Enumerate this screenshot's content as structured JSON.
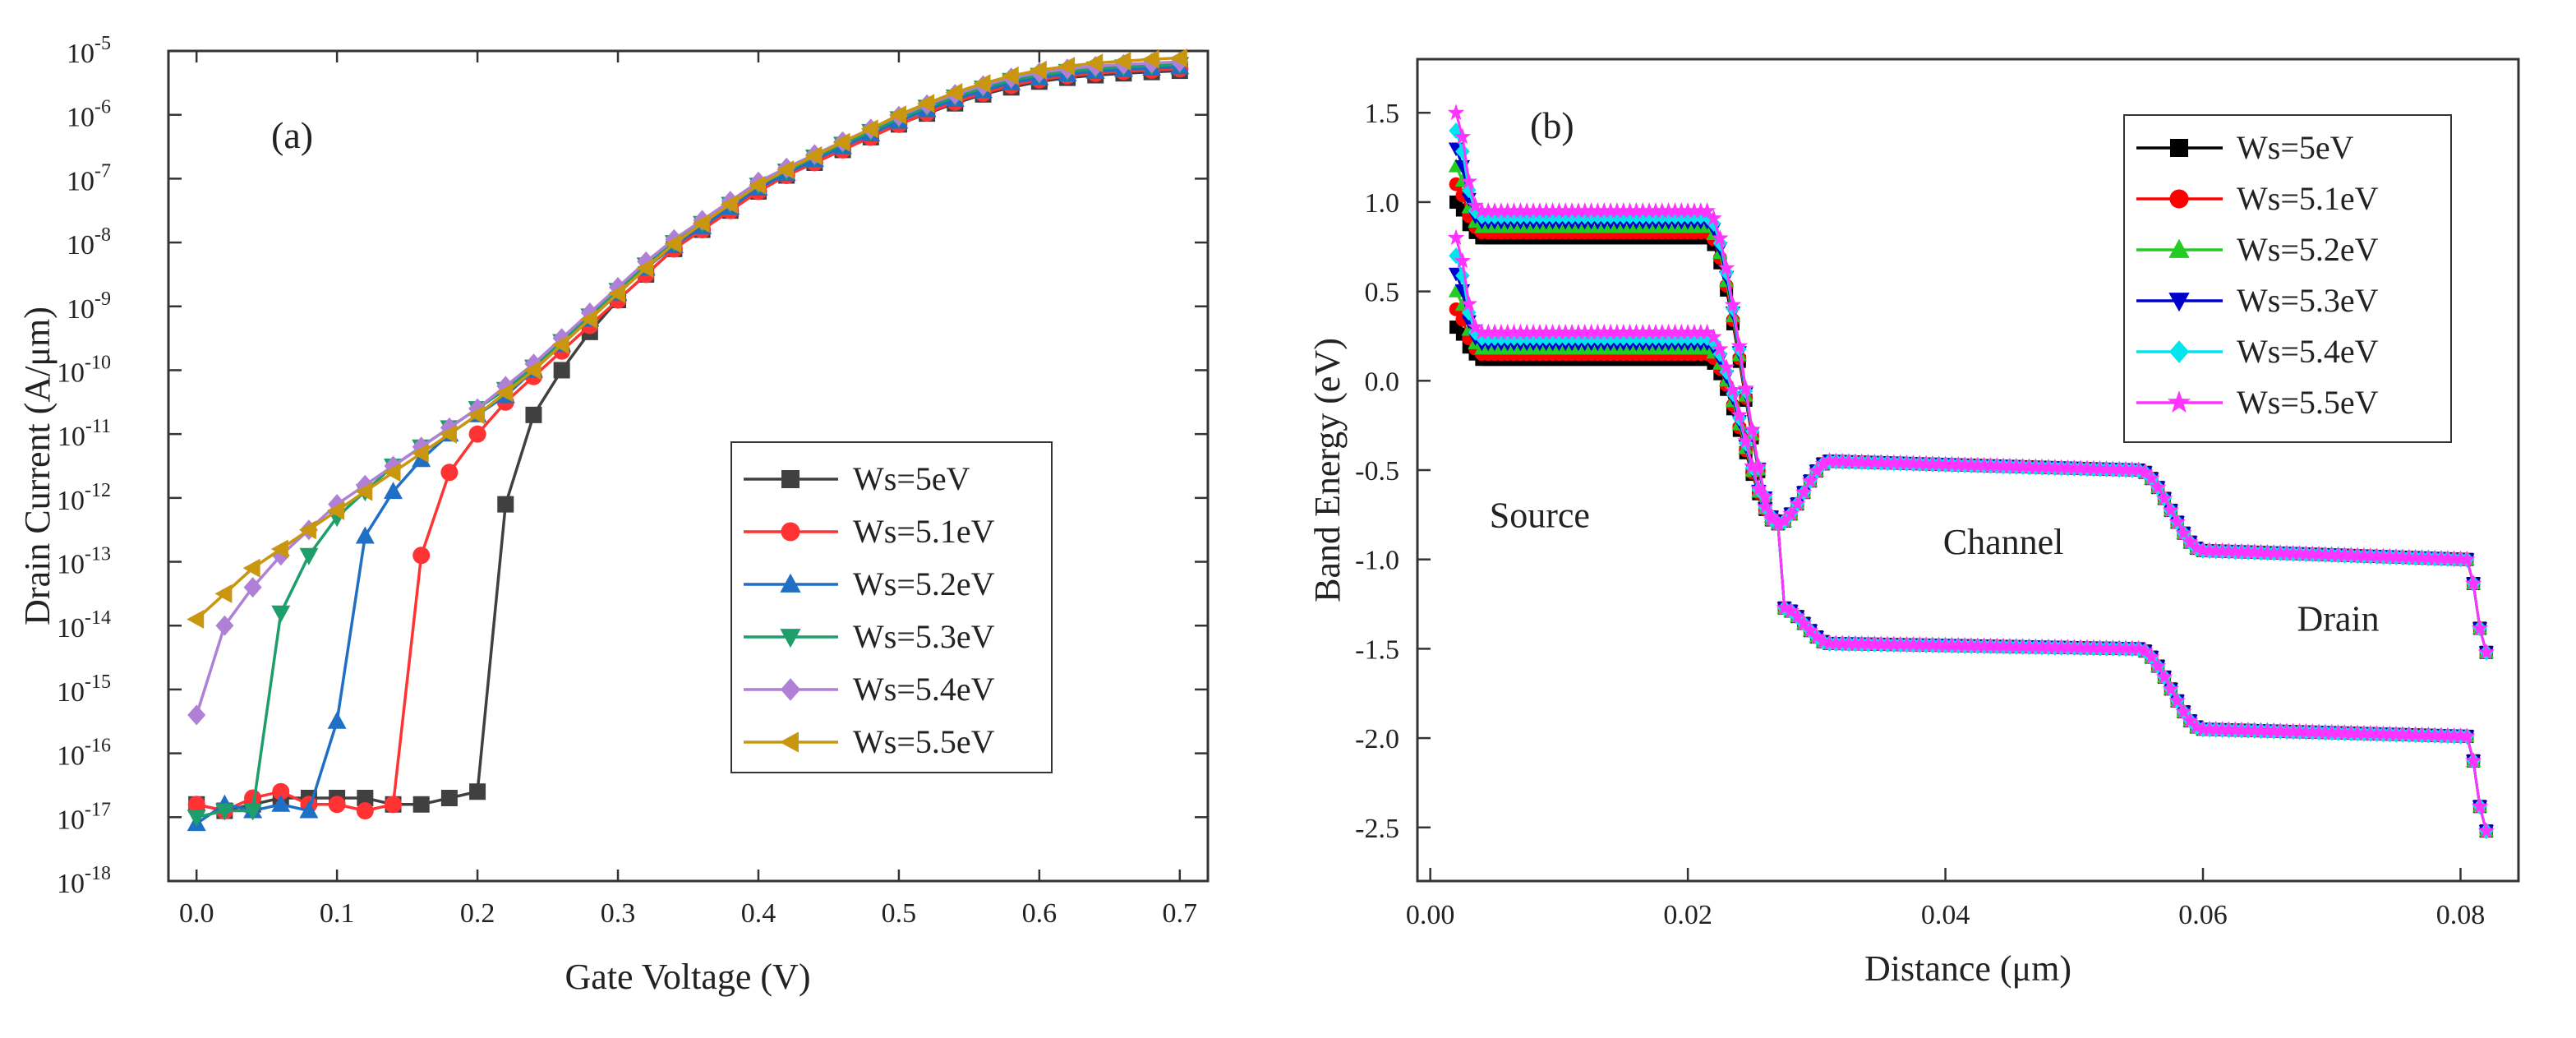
{
  "chart_data": [
    {
      "type": "line",
      "panel_label": "(a)",
      "xlabel": "Gate Voltage (V)",
      "ylabel": "Drain Current (A/μm)",
      "yscale": "log",
      "xlim": [
        -0.02,
        0.72
      ],
      "ylim_exp": [
        -18,
        -5
      ],
      "xticks": [
        "0.0",
        "0.1",
        "0.2",
        "0.3",
        "0.4",
        "0.5",
        "0.6",
        "0.7"
      ],
      "yticks": [
        {
          "base": "10",
          "exp": "-18"
        },
        {
          "base": "10",
          "exp": "-17"
        },
        {
          "base": "10",
          "exp": "-16"
        },
        {
          "base": "10",
          "exp": "-15"
        },
        {
          "base": "10",
          "exp": "-14"
        },
        {
          "base": "10",
          "exp": "-13"
        },
        {
          "base": "10",
          "exp": "-12"
        },
        {
          "base": "10",
          "exp": "-11"
        },
        {
          "base": "10",
          "exp": "-10"
        },
        {
          "base": "10",
          "exp": "-9"
        },
        {
          "base": "10",
          "exp": "-8"
        },
        {
          "base": "10",
          "exp": "-7"
        },
        {
          "base": "10",
          "exp": "-6"
        },
        {
          "base": "10",
          "exp": "-5"
        }
      ],
      "legend_position": "center-right",
      "x": [
        0.0,
        0.02,
        0.04,
        0.06,
        0.08,
        0.1,
        0.12,
        0.14,
        0.16,
        0.18,
        0.2,
        0.22,
        0.24,
        0.26,
        0.28,
        0.3,
        0.32,
        0.34,
        0.36,
        0.38,
        0.4,
        0.42,
        0.44,
        0.46,
        0.48,
        0.5,
        0.52,
        0.54,
        0.56,
        0.58,
        0.6,
        0.62,
        0.64,
        0.66,
        0.68,
        0.7
      ],
      "series": [
        {
          "name": "Ws=5eV",
          "color": "#404040",
          "marker": "square",
          "log10_values": [
            -16.8,
            -16.9,
            -16.8,
            -16.7,
            -16.7,
            -16.7,
            -16.7,
            -16.8,
            -16.8,
            -16.7,
            -16.6,
            -12.1,
            -10.7,
            -10.0,
            -9.4,
            -8.9,
            -8.5,
            -8.1,
            -7.8,
            -7.5,
            -7.2,
            -6.95,
            -6.75,
            -6.55,
            -6.35,
            -6.15,
            -5.98,
            -5.82,
            -5.68,
            -5.57,
            -5.48,
            -5.42,
            -5.38,
            -5.35,
            -5.33,
            -5.31
          ]
        },
        {
          "name": "Ws=5.1eV",
          "color": "#ff3333",
          "marker": "circle",
          "log10_values": [
            -16.8,
            -16.9,
            -16.7,
            -16.6,
            -16.8,
            -16.8,
            -16.9,
            -16.8,
            -12.9,
            -11.6,
            -11.0,
            -10.5,
            -10.1,
            -9.7,
            -9.3,
            -8.9,
            -8.5,
            -8.1,
            -7.8,
            -7.5,
            -7.2,
            -6.95,
            -6.75,
            -6.55,
            -6.35,
            -6.15,
            -5.97,
            -5.8,
            -5.66,
            -5.54,
            -5.45,
            -5.39,
            -5.35,
            -5.32,
            -5.3,
            -5.28
          ]
        },
        {
          "name": "Ws=5.2eV",
          "color": "#1f6fc4",
          "marker": "triangle-up",
          "log10_values": [
            -17.1,
            -16.8,
            -16.9,
            -16.8,
            -16.9,
            -15.5,
            -12.6,
            -11.9,
            -11.4,
            -11.0,
            -10.7,
            -10.4,
            -10.0,
            -9.6,
            -9.2,
            -8.8,
            -8.4,
            -8.05,
            -7.75,
            -7.45,
            -7.15,
            -6.92,
            -6.7,
            -6.5,
            -6.3,
            -6.1,
            -5.92,
            -5.76,
            -5.62,
            -5.5,
            -5.42,
            -5.36,
            -5.32,
            -5.29,
            -5.27,
            -5.25
          ]
        },
        {
          "name": "Ws=5.3eV",
          "color": "#1e9e6a",
          "marker": "triangle-down",
          "log10_values": [
            -17.0,
            -16.9,
            -16.9,
            -13.8,
            -12.9,
            -12.3,
            -11.9,
            -11.5,
            -11.2,
            -10.9,
            -10.6,
            -10.3,
            -9.95,
            -9.55,
            -9.15,
            -8.75,
            -8.35,
            -8.0,
            -7.7,
            -7.4,
            -7.1,
            -6.88,
            -6.66,
            -6.46,
            -6.26,
            -6.06,
            -5.88,
            -5.72,
            -5.58,
            -5.46,
            -5.38,
            -5.32,
            -5.28,
            -5.25,
            -5.23,
            -5.21
          ]
        },
        {
          "name": "Ws=5.4eV",
          "color": "#b07fd6",
          "marker": "diamond",
          "log10_values": [
            -15.4,
            -14.0,
            -13.4,
            -12.9,
            -12.5,
            -12.1,
            -11.8,
            -11.5,
            -11.2,
            -10.9,
            -10.6,
            -10.25,
            -9.9,
            -9.5,
            -9.1,
            -8.7,
            -8.3,
            -7.95,
            -7.65,
            -7.35,
            -7.05,
            -6.83,
            -6.62,
            -6.42,
            -6.22,
            -6.02,
            -5.84,
            -5.68,
            -5.54,
            -5.42,
            -5.34,
            -5.28,
            -5.24,
            -5.21,
            -5.19,
            -5.17
          ]
        },
        {
          "name": "Ws=5.5eV",
          "color": "#c8960f",
          "marker": "triangle-left",
          "log10_values": [
            -13.9,
            -13.5,
            -13.1,
            -12.8,
            -12.5,
            -12.2,
            -11.9,
            -11.6,
            -11.3,
            -11.0,
            -10.7,
            -10.35,
            -10.0,
            -9.6,
            -9.2,
            -8.8,
            -8.4,
            -8.02,
            -7.7,
            -7.4,
            -7.1,
            -6.86,
            -6.64,
            -6.43,
            -6.22,
            -6.0,
            -5.82,
            -5.65,
            -5.51,
            -5.39,
            -5.3,
            -5.24,
            -5.19,
            -5.16,
            -5.13,
            -5.11
          ]
        }
      ]
    },
    {
      "type": "line",
      "panel_label": "(b)",
      "xlabel": "Distance (μm)",
      "ylabel": "Band Energy (eV)",
      "xlim": [
        -0.001,
        0.0845
      ],
      "ylim": [
        -2.8,
        1.8
      ],
      "xticks": [
        "0.00",
        "0.02",
        "0.04",
        "0.06",
        "0.08"
      ],
      "yticks": [
        "1.5",
        "1.0",
        "0.5",
        "0.0",
        "-0.5",
        "-1.0",
        "-1.5",
        "-2.0",
        "-2.5"
      ],
      "legend_position": "top-right",
      "annotations": [
        {
          "text": "Source",
          "x": 0.0085,
          "y": -0.82
        },
        {
          "text": "Channel",
          "x": 0.0445,
          "y": -0.97
        },
        {
          "text": "Drain",
          "x": 0.0705,
          "y": -1.4
        }
      ],
      "x_start": 0.002,
      "x_end": 0.082,
      "point_step": 0.0005,
      "profile": {
        "source_end": 0.0215,
        "step1_end": 0.027,
        "channel_plateau_start": 0.031,
        "channel_plateau_end": 0.055,
        "step2_end": 0.06,
        "drain_plateau_end": 0.0805,
        "conduction_band": {
          "plateau_source_offset": 0.0,
          "at_step1_end": -0.8,
          "channel": -0.45,
          "drain": -0.95,
          "edge_rise": 0.25,
          "tip": -1.52
        },
        "valence_band": {
          "plateau_source_offset": -0.68,
          "at_step1_start": -0.8,
          "at_step1_end": -1.27,
          "channel": -1.47,
          "drain": -1.95,
          "tip": -2.52
        }
      },
      "series": [
        {
          "name": "Ws=5eV",
          "color": "#000000",
          "marker": "square",
          "source_level": 0.8,
          "spike": 1.0
        },
        {
          "name": "Ws=5.1eV",
          "color": "#ff0000",
          "marker": "circle",
          "source_level": 0.83,
          "spike": 1.1
        },
        {
          "name": "Ws=5.2eV",
          "color": "#22cc22",
          "marker": "triangle-up",
          "source_level": 0.86,
          "spike": 1.2
        },
        {
          "name": "Ws=5.3eV",
          "color": "#0000cc",
          "marker": "triangle-down",
          "source_level": 0.89,
          "spike": 1.3
        },
        {
          "name": "Ws=5.4eV",
          "color": "#00e5ee",
          "marker": "diamond",
          "source_level": 0.92,
          "spike": 1.4
        },
        {
          "name": "Ws=5.5eV",
          "color": "#ff33ff",
          "marker": "star",
          "source_level": 0.95,
          "spike": 1.5
        }
      ]
    }
  ]
}
